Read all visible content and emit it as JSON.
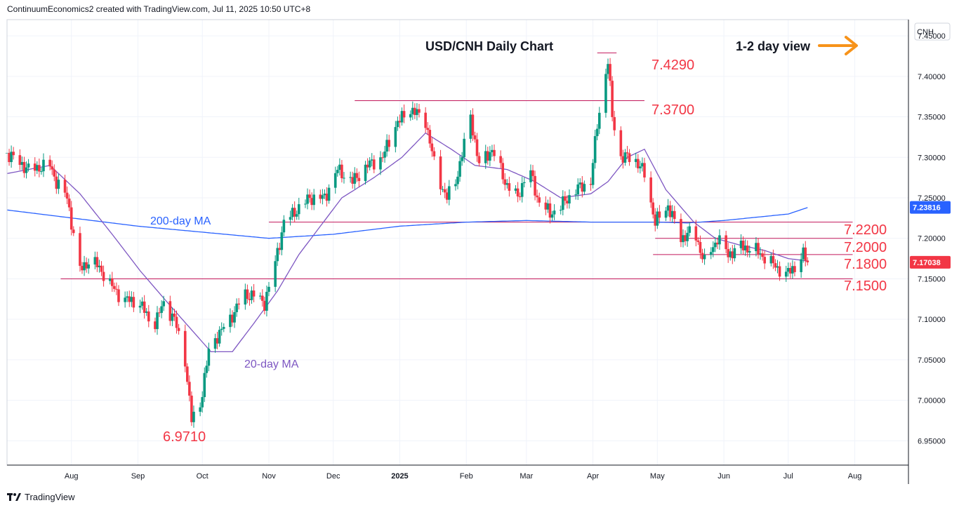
{
  "header": {
    "attribution": "ContinuumEconomics2 created with TradingView.com, Jul 11, 2025 10:50 UTC+8"
  },
  "footer": {
    "brand": "TradingView"
  },
  "colors": {
    "up": "#089981",
    "down": "#f23645",
    "ma20": "#7e57c2",
    "ma200": "#2962ff",
    "level_line": "#c2185b",
    "annotation": "#f23645",
    "arrow": "#f7931a",
    "price_badge": "#f23645",
    "ma200_badge": "#2962ff"
  },
  "chart_data": {
    "type": "candlestick",
    "title": "USD/CNH Daily Chart",
    "view_label": "1-2 day view",
    "view_direction": "sideways (right arrow)",
    "currency_label": "CNH",
    "y_ticks": [
      "7.45000",
      "7.40000",
      "7.35000",
      "7.30000",
      "7.25000",
      "7.20000",
      "7.15000",
      "7.10000",
      "7.05000",
      "7.00000",
      "6.95000"
    ],
    "ylim": [
      6.92,
      7.47
    ],
    "x_ticks": [
      "Aug",
      "Sep",
      "Oct",
      "Nov",
      "Dec",
      "2025",
      "Feb",
      "Mar",
      "Apr",
      "May",
      "Jun",
      "Jul",
      "Aug"
    ],
    "x_tick_dates": [
      "2024-08-01",
      "2024-09-01",
      "2024-10-01",
      "2024-11-01",
      "2024-12-01",
      "2025-01-01",
      "2025-02-01",
      "2025-03-01",
      "2025-04-01",
      "2025-05-01",
      "2025-06-01",
      "2025-07-01",
      "2025-08-01"
    ],
    "x_range": [
      "2024-07-02",
      "2025-08-26"
    ],
    "last_price": {
      "label": "7.17038",
      "value": 7.17038
    },
    "ma200_last": {
      "label": "7.23816",
      "value": 7.23816
    },
    "levels": [
      {
        "label": "7.4290",
        "value": 7.429,
        "from": "2025-04-03",
        "to": "2025-04-12"
      },
      {
        "label": "7.3700",
        "value": 7.37,
        "from": "2024-12-11",
        "to": "2025-04-25"
      },
      {
        "label": "7.2200",
        "value": 7.22,
        "from": "2024-11-01",
        "to": "2025-07-31"
      },
      {
        "label": "7.2000",
        "value": 7.2,
        "from": "2025-04-30",
        "to": "2025-07-31"
      },
      {
        "label": "7.1800",
        "value": 7.18,
        "from": "2025-04-29",
        "to": "2025-07-31"
      },
      {
        "label": "7.1500",
        "value": 7.15,
        "from": "2024-07-27",
        "to": "2025-07-31"
      },
      {
        "label": "6.9710",
        "value": 6.971,
        "from": "",
        "to": ""
      }
    ],
    "annotations": [
      {
        "text": "200-day MA"
      },
      {
        "text": "20-day MA"
      }
    ],
    "price_anchors": [
      [
        "2024-07-02",
        7.305
      ],
      [
        "2024-07-12",
        7.285
      ],
      [
        "2024-07-22",
        7.29
      ],
      [
        "2024-07-25",
        7.27
      ],
      [
        "2024-07-30",
        7.25
      ],
      [
        "2024-08-05",
        7.16
      ],
      [
        "2024-08-10",
        7.175
      ],
      [
        "2024-08-15",
        7.16
      ],
      [
        "2024-08-20",
        7.14
      ],
      [
        "2024-08-25",
        7.125
      ],
      [
        "2024-09-02",
        7.12
      ],
      [
        "2024-09-08",
        7.09
      ],
      [
        "2024-09-13",
        7.12
      ],
      [
        "2024-09-18",
        7.1
      ],
      [
        "2024-09-23",
        7.05
      ],
      [
        "2024-09-26",
        6.975
      ],
      [
        "2024-09-30",
        6.995
      ],
      [
        "2024-10-04",
        7.06
      ],
      [
        "2024-10-08",
        7.08
      ],
      [
        "2024-10-14",
        7.1
      ],
      [
        "2024-10-20",
        7.13
      ],
      [
        "2024-10-25",
        7.13
      ],
      [
        "2024-10-30",
        7.12
      ],
      [
        "2024-11-04",
        7.17
      ],
      [
        "2024-11-08",
        7.22
      ],
      [
        "2024-11-14",
        7.235
      ],
      [
        "2024-11-20",
        7.25
      ],
      [
        "2024-11-27",
        7.25
      ],
      [
        "2024-12-03",
        7.285
      ],
      [
        "2024-12-10",
        7.27
      ],
      [
        "2024-12-17",
        7.29
      ],
      [
        "2024-12-24",
        7.3
      ],
      [
        "2024-12-30",
        7.34
      ],
      [
        "2025-01-06",
        7.36
      ],
      [
        "2025-01-13",
        7.345
      ],
      [
        "2025-01-18",
        7.28
      ],
      [
        "2025-01-23",
        7.25
      ],
      [
        "2025-01-27",
        7.27
      ],
      [
        "2025-02-03",
        7.35
      ],
      [
        "2025-02-07",
        7.29
      ],
      [
        "2025-02-13",
        7.31
      ],
      [
        "2025-02-19",
        7.27
      ],
      [
        "2025-02-25",
        7.25
      ],
      [
        "2025-03-02",
        7.29
      ],
      [
        "2025-03-06",
        7.25
      ],
      [
        "2025-03-12",
        7.23
      ],
      [
        "2025-03-17",
        7.24
      ],
      [
        "2025-03-24",
        7.26
      ],
      [
        "2025-03-31",
        7.27
      ],
      [
        "2025-04-03",
        7.34
      ],
      [
        "2025-04-08",
        7.42
      ],
      [
        "2025-04-10",
        7.35
      ],
      [
        "2025-04-14",
        7.3
      ],
      [
        "2025-04-20",
        7.3
      ],
      [
        "2025-04-25",
        7.28
      ],
      [
        "2025-04-30",
        7.22
      ],
      [
        "2025-05-06",
        7.24
      ],
      [
        "2025-05-12",
        7.2
      ],
      [
        "2025-05-18",
        7.21
      ],
      [
        "2025-05-23",
        7.17
      ],
      [
        "2025-05-29",
        7.2
      ],
      [
        "2025-06-03",
        7.18
      ],
      [
        "2025-06-09",
        7.19
      ],
      [
        "2025-06-16",
        7.185
      ],
      [
        "2025-06-23",
        7.17
      ],
      [
        "2025-06-30",
        7.155
      ],
      [
        "2025-07-04",
        7.165
      ],
      [
        "2025-07-08",
        7.18
      ],
      [
        "2025-07-10",
        7.17038
      ]
    ],
    "ma200_anchors": [
      [
        "2024-07-02",
        7.235
      ],
      [
        "2024-09-01",
        7.215
      ],
      [
        "2024-11-01",
        7.2
      ],
      [
        "2024-12-01",
        7.205
      ],
      [
        "2025-01-01",
        7.215
      ],
      [
        "2025-02-01",
        7.22
      ],
      [
        "2025-03-01",
        7.222
      ],
      [
        "2025-04-01",
        7.22
      ],
      [
        "2025-05-01",
        7.22
      ],
      [
        "2025-05-15",
        7.219
      ],
      [
        "2025-06-01",
        7.222
      ],
      [
        "2025-07-01",
        7.23
      ],
      [
        "2025-07-10",
        7.238
      ]
    ],
    "ma20_anchors": [
      [
        "2024-07-02",
        7.28
      ],
      [
        "2024-07-22",
        7.29
      ],
      [
        "2024-08-05",
        7.255
      ],
      [
        "2024-08-20",
        7.205
      ],
      [
        "2024-09-02",
        7.16
      ],
      [
        "2024-09-15",
        7.12
      ],
      [
        "2024-09-25",
        7.09
      ],
      [
        "2024-10-05",
        7.06
      ],
      [
        "2024-10-15",
        7.06
      ],
      [
        "2024-10-25",
        7.095
      ],
      [
        "2024-11-05",
        7.135
      ],
      [
        "2024-11-15",
        7.18
      ],
      [
        "2024-11-25",
        7.215
      ],
      [
        "2024-12-05",
        7.25
      ],
      [
        "2024-12-20",
        7.275
      ],
      [
        "2025-01-02",
        7.3
      ],
      [
        "2025-01-13",
        7.33
      ],
      [
        "2025-01-25",
        7.31
      ],
      [
        "2025-02-05",
        7.29
      ],
      [
        "2025-02-20",
        7.285
      ],
      [
        "2025-03-05",
        7.27
      ],
      [
        "2025-03-17",
        7.25
      ],
      [
        "2025-03-31",
        7.255
      ],
      [
        "2025-04-08",
        7.27
      ],
      [
        "2025-04-17",
        7.3
      ],
      [
        "2025-04-25",
        7.31
      ],
      [
        "2025-05-05",
        7.26
      ],
      [
        "2025-05-18",
        7.22
      ],
      [
        "2025-05-28",
        7.2
      ],
      [
        "2025-06-08",
        7.192
      ],
      [
        "2025-06-20",
        7.185
      ],
      [
        "2025-07-01",
        7.175
      ],
      [
        "2025-07-10",
        7.172
      ]
    ]
  }
}
